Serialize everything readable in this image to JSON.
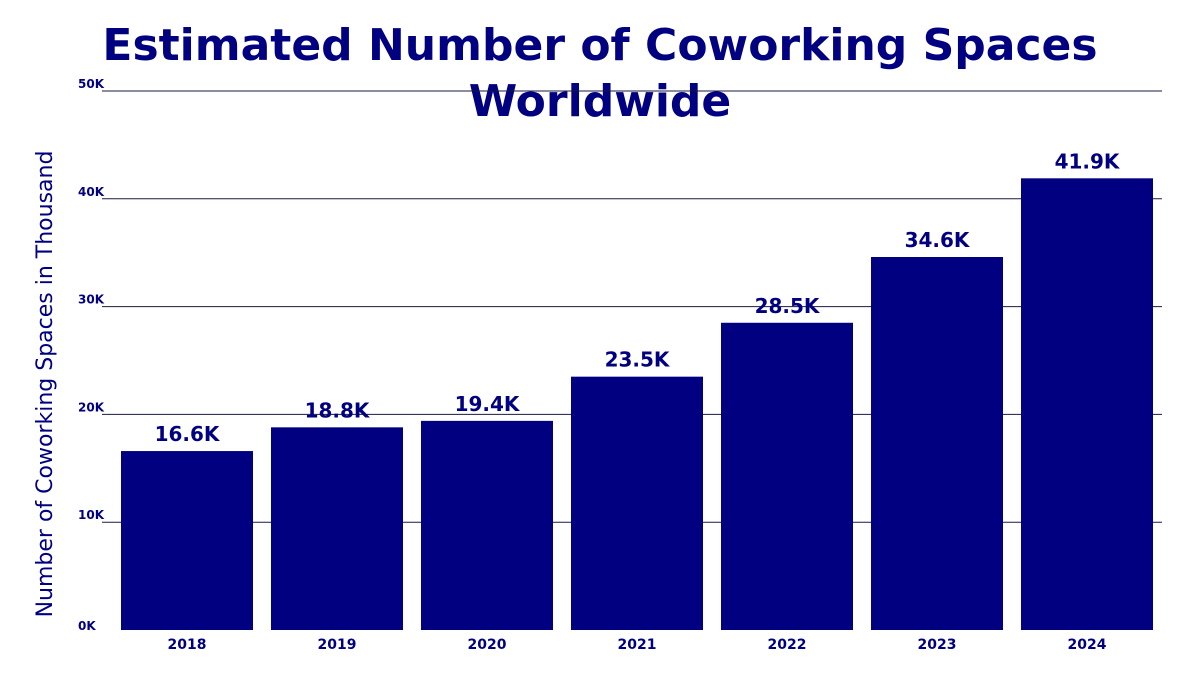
{
  "chart_data": {
    "type": "bar",
    "title": "Estimated Number of Coworking Spaces Worldwide",
    "ylabel": "Number of Coworking Spaces in Thousand",
    "xlabel": "",
    "categories": [
      "2018",
      "2019",
      "2020",
      "2021",
      "2022",
      "2023",
      "2024"
    ],
    "values": [
      16.6,
      18.8,
      19.4,
      23.5,
      28.5,
      34.6,
      41.9
    ],
    "data_labels": [
      "16.6K",
      "18.8K",
      "19.4K",
      "23.5K",
      "28.5K",
      "34.6K",
      "41.9K"
    ],
    "ylim": [
      0,
      50
    ],
    "yticks": [
      0,
      10,
      20,
      30,
      40,
      50
    ],
    "ytick_labels": [
      "0K",
      "10K",
      "20K",
      "30K",
      "40K",
      "50K"
    ],
    "grid": true,
    "bar_color": "#000080",
    "text_color": "#000080"
  }
}
